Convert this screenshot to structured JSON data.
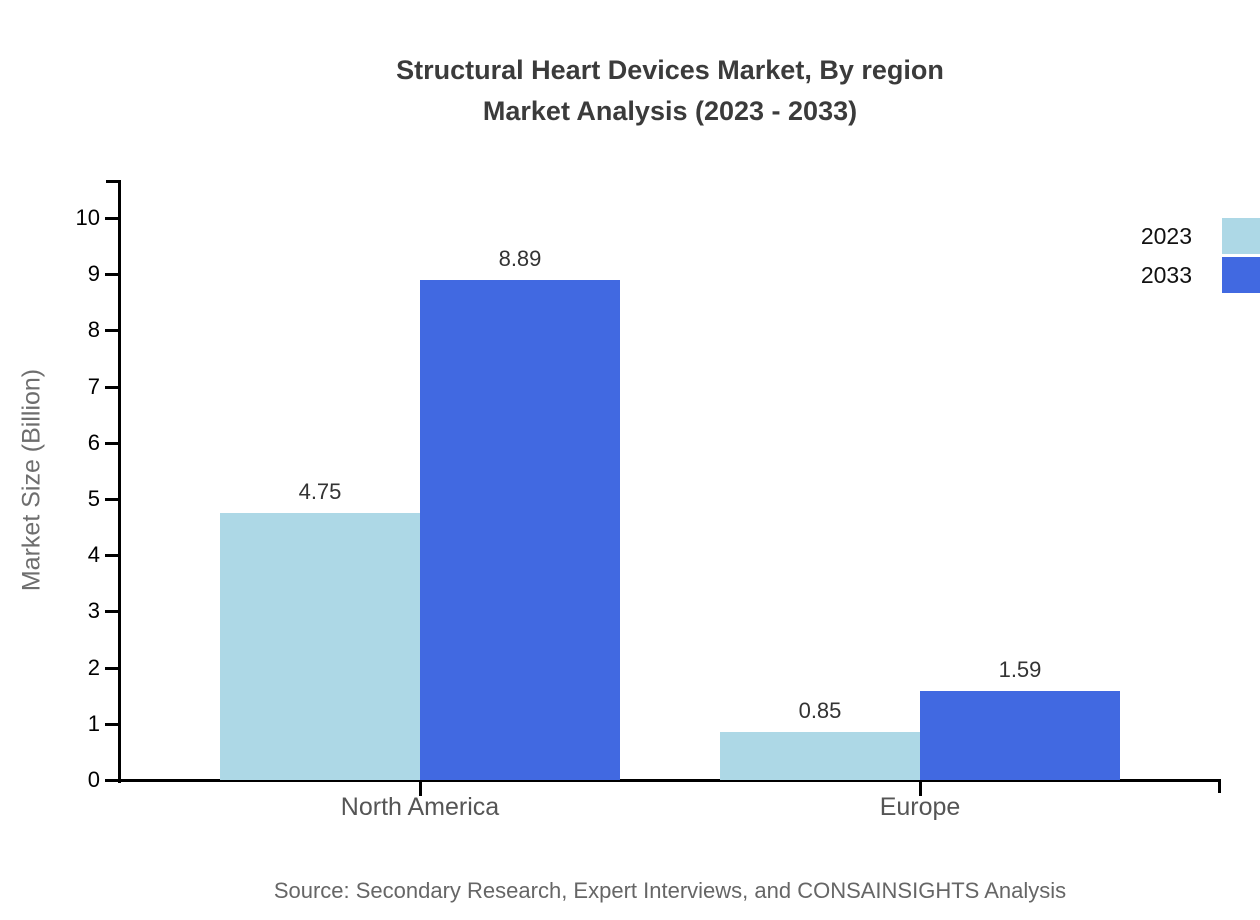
{
  "title": {
    "line1": "Structural Heart Devices Market, By region",
    "line2": "Market Analysis (2023 - 2033)"
  },
  "source_note": "Source: Secondary Research, Expert Interviews, and CONSAINSIGHTS Analysis",
  "colors": {
    "series_2023": "#ADD8E6",
    "series_2033": "#4169E1",
    "axis": "#000000",
    "title_text": "#3B3B3B",
    "value_label_text": "#333333",
    "category_label_text": "#555555",
    "axis_title_text": "#6E6E6E",
    "source_text": "#666666",
    "background": "#FFFFFF"
  },
  "chart_data": {
    "type": "bar",
    "title": "Structural Heart Devices Market, By region Market Analysis (2023 - 2033)",
    "categories": [
      "North America",
      "Europe"
    ],
    "series": [
      {
        "name": "2023",
        "color": "#ADD8E6",
        "values": [
          4.75,
          0.85
        ],
        "value_labels": [
          "4.75",
          "0.85"
        ]
      },
      {
        "name": "2033",
        "color": "#4169E1",
        "values": [
          8.89,
          1.59
        ],
        "value_labels": [
          "8.89",
          "1.59"
        ]
      }
    ],
    "xlabel": "",
    "ylabel": "Market Size (Billion)",
    "ylim": [
      0,
      10
    ],
    "yticks": [
      0,
      1,
      2,
      3,
      4,
      5,
      6,
      7,
      8,
      9,
      10
    ],
    "grid": false,
    "legend_position": "top-right"
  }
}
